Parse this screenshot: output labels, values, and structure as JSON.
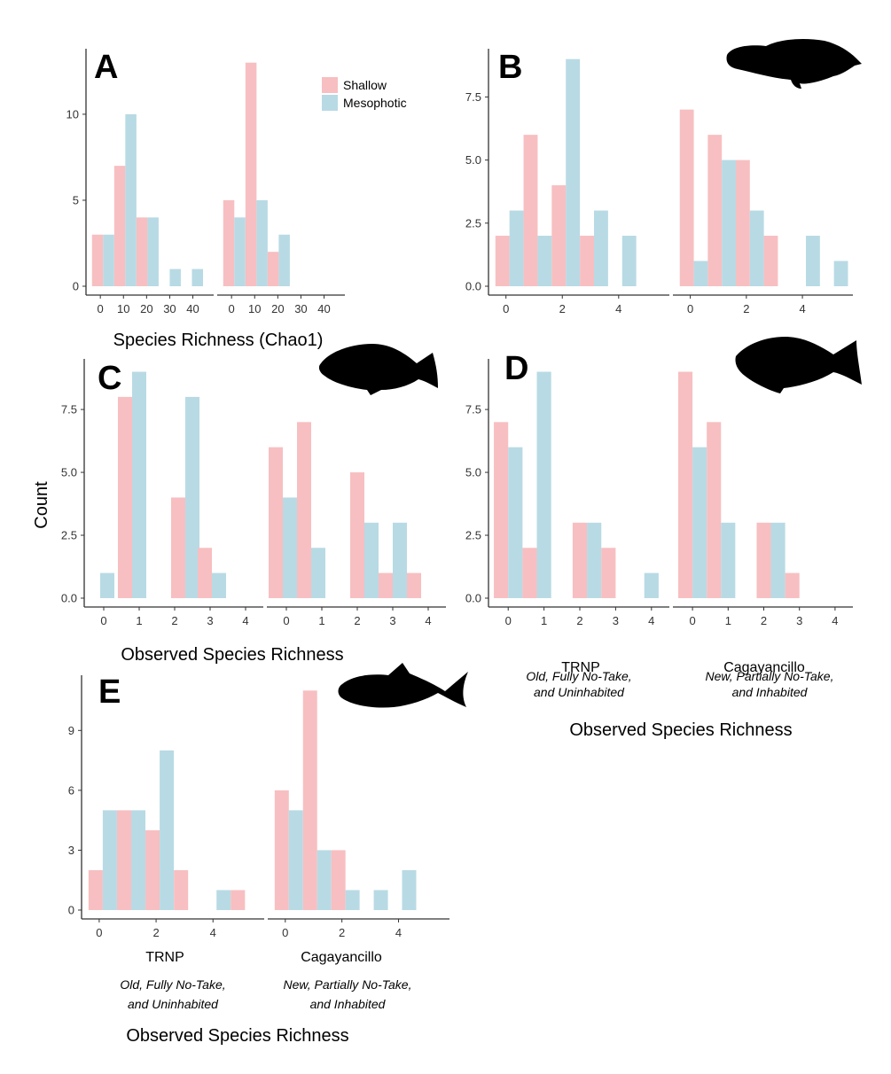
{
  "colors": {
    "shallow": "#f7bfc1",
    "mesophotic": "#b8dae4",
    "axis": "#333333"
  },
  "legend": {
    "shallow": "Shallow",
    "mesophotic": "Mesophotic"
  },
  "labels": {
    "count": "Count",
    "xA": "Species Richness (Chao1)",
    "xC": "Observed Species Richness",
    "xD": "Observed Species Richness",
    "xE": "Observed Species Richness",
    "trnp": "TRNP",
    "cagayancillo": "Cagayancillo",
    "trnp_caption1": "Old, Fully No-Take,",
    "trnp_caption2": "and Uninhabited",
    "cag_caption1": "New, Partially No-Take,",
    "cag_caption2": "and Inhabited"
  },
  "icons": [
    "grouper-silhouette-icon",
    "snapper-silhouette-icon",
    "emperor-silhouette-icon",
    "trevally-silhouette-icon"
  ],
  "chart_data": [
    {
      "panel": "A",
      "type": "bar",
      "ylim": [
        0,
        13.5
      ],
      "yticks": [
        0,
        5,
        10
      ],
      "ytick_labels": [
        "0",
        "5",
        "10"
      ],
      "xticks": [
        0,
        10,
        20,
        30,
        40
      ],
      "xtick_labels": [
        "0",
        "10",
        "20",
        "30",
        "40"
      ],
      "xlim": [
        -6.2,
        49
      ],
      "binwidth": 4.8,
      "facets": [
        {
          "bars": [
            {
              "x": -1.2,
              "s": "shallow",
              "v": 3
            },
            {
              "x": 3.6,
              "s": "mesophotic",
              "v": 3
            },
            {
              "x": 8.4,
              "s": "shallow",
              "v": 7
            },
            {
              "x": 13.2,
              "s": "mesophotic",
              "v": 10
            },
            {
              "x": 18.0,
              "s": "shallow",
              "v": 4
            },
            {
              "x": 22.8,
              "s": "mesophotic",
              "v": 4
            },
            {
              "x": 32.4,
              "s": "mesophotic",
              "v": 1
            },
            {
              "x": 42.0,
              "s": "mesophotic",
              "v": 1
            }
          ]
        },
        {
          "bars": [
            {
              "x": -1.2,
              "s": "shallow",
              "v": 5
            },
            {
              "x": 3.6,
              "s": "mesophotic",
              "v": 4
            },
            {
              "x": 8.4,
              "s": "shallow",
              "v": 13
            },
            {
              "x": 13.2,
              "s": "mesophotic",
              "v": 5
            },
            {
              "x": 18.0,
              "s": "shallow",
              "v": 2
            },
            {
              "x": 22.8,
              "s": "mesophotic",
              "v": 3
            }
          ]
        }
      ]
    },
    {
      "panel": "B",
      "type": "bar",
      "ylim": [
        0,
        9.2
      ],
      "yticks": [
        0,
        2.5,
        5,
        7.5
      ],
      "ytick_labels": [
        "0.0",
        "2.5",
        "5.0",
        "7.5"
      ],
      "xticks": [
        0,
        2,
        4
      ],
      "xtick_labels": [
        "0",
        "2",
        "4"
      ],
      "xlim": [
        -0.62,
        5.8
      ],
      "binwidth": 0.5,
      "facets": [
        {
          "bars": [
            {
              "x": -0.125,
              "s": "shallow",
              "v": 2
            },
            {
              "x": 0.375,
              "s": "mesophotic",
              "v": 3
            },
            {
              "x": 0.875,
              "s": "shallow",
              "v": 6
            },
            {
              "x": 1.375,
              "s": "mesophotic",
              "v": 2
            },
            {
              "x": 1.875,
              "s": "shallow",
              "v": 4
            },
            {
              "x": 2.375,
              "s": "mesophotic",
              "v": 9
            },
            {
              "x": 2.875,
              "s": "shallow",
              "v": 2
            },
            {
              "x": 3.375,
              "s": "mesophotic",
              "v": 3
            },
            {
              "x": 4.375,
              "s": "mesophotic",
              "v": 2
            }
          ]
        },
        {
          "bars": [
            {
              "x": -0.125,
              "s": "shallow",
              "v": 7
            },
            {
              "x": 0.375,
              "s": "mesophotic",
              "v": 1
            },
            {
              "x": 0.875,
              "s": "shallow",
              "v": 6
            },
            {
              "x": 1.375,
              "s": "mesophotic",
              "v": 5
            },
            {
              "x": 1.875,
              "s": "shallow",
              "v": 5
            },
            {
              "x": 2.375,
              "s": "mesophotic",
              "v": 3
            },
            {
              "x": 2.875,
              "s": "shallow",
              "v": 2
            },
            {
              "x": 4.375,
              "s": "mesophotic",
              "v": 2
            },
            {
              "x": 5.375,
              "s": "mesophotic",
              "v": 1
            }
          ]
        }
      ]
    },
    {
      "panel": "C",
      "type": "bar",
      "ylim": [
        0,
        9.3
      ],
      "yticks": [
        0,
        2.5,
        5,
        7.5
      ],
      "ytick_labels": [
        "0.0",
        "2.5",
        "5.0",
        "7.5"
      ],
      "xticks": [
        0,
        1,
        2,
        3,
        4
      ],
      "xtick_labels": [
        "0",
        "1",
        "2",
        "3",
        "4"
      ],
      "xlim": [
        -0.55,
        4.5
      ],
      "binwidth": 0.4,
      "facets": [
        {
          "bars": [
            {
              "x": 0.1,
              "s": "mesophotic",
              "v": 1
            },
            {
              "x": 0.6,
              "s": "shallow",
              "v": 8
            },
            {
              "x": 1.0,
              "s": "mesophotic",
              "v": 9
            },
            {
              "x": 2.1,
              "s": "shallow",
              "v": 4
            },
            {
              "x": 2.5,
              "s": "mesophotic",
              "v": 8
            },
            {
              "x": 2.85,
              "s": "shallow",
              "v": 2
            },
            {
              "x": 3.25,
              "s": "mesophotic",
              "v": 1
            }
          ]
        },
        {
          "bars": [
            {
              "x": -0.3,
              "s": "shallow",
              "v": 6
            },
            {
              "x": 0.1,
              "s": "mesophotic",
              "v": 4
            },
            {
              "x": 0.5,
              "s": "shallow",
              "v": 7
            },
            {
              "x": 0.9,
              "s": "mesophotic",
              "v": 2
            },
            {
              "x": 2.0,
              "s": "shallow",
              "v": 5
            },
            {
              "x": 2.4,
              "s": "mesophotic",
              "v": 3
            },
            {
              "x": 2.8,
              "s": "shallow",
              "v": 1
            },
            {
              "x": 3.2,
              "s": "mesophotic",
              "v": 3
            },
            {
              "x": 3.6,
              "s": "shallow",
              "v": 1
            }
          ]
        }
      ]
    },
    {
      "panel": "D",
      "type": "bar",
      "ylim": [
        0,
        9.3
      ],
      "yticks": [
        0,
        2.5,
        5,
        7.5
      ],
      "ytick_labels": [
        "0.0",
        "2.5",
        "5.0",
        "7.5"
      ],
      "xticks": [
        0,
        1,
        2,
        3,
        4
      ],
      "xtick_labels": [
        "0",
        "1",
        "2",
        "3",
        "4"
      ],
      "xlim": [
        -0.55,
        4.5
      ],
      "binwidth": 0.4,
      "facets": [
        {
          "bars": [
            {
              "x": -0.2,
              "s": "shallow",
              "v": 7
            },
            {
              "x": 0.2,
              "s": "mesophotic",
              "v": 6
            },
            {
              "x": 0.6,
              "s": "shallow",
              "v": 2
            },
            {
              "x": 1.0,
              "s": "mesophotic",
              "v": 9
            },
            {
              "x": 2.0,
              "s": "shallow",
              "v": 3
            },
            {
              "x": 2.4,
              "s": "mesophotic",
              "v": 3
            },
            {
              "x": 2.8,
              "s": "shallow",
              "v": 2
            },
            {
              "x": 4.0,
              "s": "mesophotic",
              "v": 1
            }
          ]
        },
        {
          "bars": [
            {
              "x": -0.2,
              "s": "shallow",
              "v": 9
            },
            {
              "x": 0.2,
              "s": "mesophotic",
              "v": 6
            },
            {
              "x": 0.6,
              "s": "shallow",
              "v": 7
            },
            {
              "x": 1.0,
              "s": "mesophotic",
              "v": 3
            },
            {
              "x": 2.0,
              "s": "shallow",
              "v": 3
            },
            {
              "x": 2.4,
              "s": "mesophotic",
              "v": 3
            },
            {
              "x": 2.8,
              "s": "shallow",
              "v": 1
            }
          ]
        }
      ]
    },
    {
      "panel": "E",
      "type": "bar",
      "ylim": [
        0,
        11.5
      ],
      "yticks": [
        0,
        3,
        6,
        9
      ],
      "ytick_labels": [
        "0",
        "3",
        "6",
        "9"
      ],
      "xticks": [
        0,
        2,
        4
      ],
      "xtick_labels": [
        "0",
        "2",
        "4"
      ],
      "xlim": [
        -0.62,
        5.8
      ],
      "binwidth": 0.5,
      "facets": [
        {
          "bars": [
            {
              "x": -0.125,
              "s": "shallow",
              "v": 2
            },
            {
              "x": 0.375,
              "s": "mesophotic",
              "v": 5
            },
            {
              "x": 0.875,
              "s": "shallow",
              "v": 5
            },
            {
              "x": 1.375,
              "s": "mesophotic",
              "v": 5
            },
            {
              "x": 1.875,
              "s": "shallow",
              "v": 4
            },
            {
              "x": 2.375,
              "s": "mesophotic",
              "v": 8
            },
            {
              "x": 2.875,
              "s": "shallow",
              "v": 2
            },
            {
              "x": 4.375,
              "s": "mesophotic",
              "v": 1
            },
            {
              "x": 4.875,
              "s": "shallow",
              "v": 1
            }
          ]
        },
        {
          "bars": [
            {
              "x": -0.125,
              "s": "shallow",
              "v": 6
            },
            {
              "x": 0.375,
              "s": "mesophotic",
              "v": 5
            },
            {
              "x": 0.875,
              "s": "shallow",
              "v": 11
            },
            {
              "x": 1.375,
              "s": "mesophotic",
              "v": 3
            },
            {
              "x": 1.875,
              "s": "shallow",
              "v": 3
            },
            {
              "x": 2.375,
              "s": "mesophotic",
              "v": 1
            },
            {
              "x": 3.375,
              "s": "mesophotic",
              "v": 1
            },
            {
              "x": 4.375,
              "s": "mesophotic",
              "v": 2
            }
          ]
        }
      ]
    }
  ]
}
